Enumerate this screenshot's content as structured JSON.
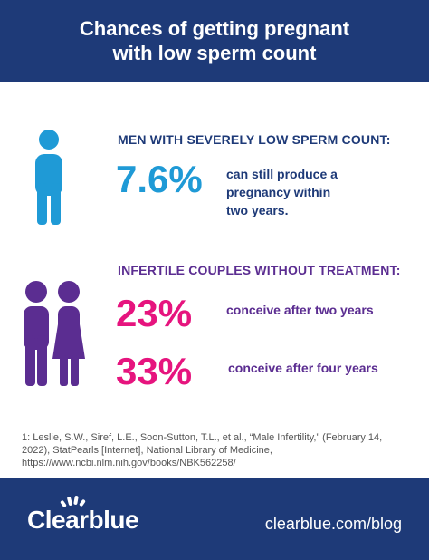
{
  "header": {
    "title_line1": "Chances of getting pregnant",
    "title_line2": "with low sperm count"
  },
  "section1": {
    "heading": "MEN WITH SEVERELY LOW SPERM COUNT:",
    "stat": "7.6%",
    "desc_line1": "can still produce a",
    "desc_line2": "pregnancy within",
    "desc_line3": "two years.",
    "icon": "man-icon",
    "color": "#1f9ad6"
  },
  "section2": {
    "heading": "INFERTILE COUPLES WITHOUT TREATMENT:",
    "icon": "couple-icon",
    "color": "#5b2d91",
    "stats": [
      {
        "value": "23%",
        "desc": "conceive after two years"
      },
      {
        "value": "33%",
        "desc": "conceive after four years"
      }
    ],
    "stat_color": "#e6147e"
  },
  "footnote": {
    "line1": "1: Leslie, S.W., Siref, L.E., Soon-Sutton, T.L., et al., “Male Infertility,” (February 14,",
    "line2": "2022), StatPearls [Internet], National Library of Medicine,",
    "line3": "https://www.ncbi.nlm.nih.gov/books/NBK562258/"
  },
  "footer": {
    "brand": "Clearblue",
    "url": "clearblue.com/blog"
  },
  "colors": {
    "navy": "#1e3a78",
    "blue": "#1f9ad6",
    "purple": "#5b2d91",
    "pink": "#e6147e"
  }
}
